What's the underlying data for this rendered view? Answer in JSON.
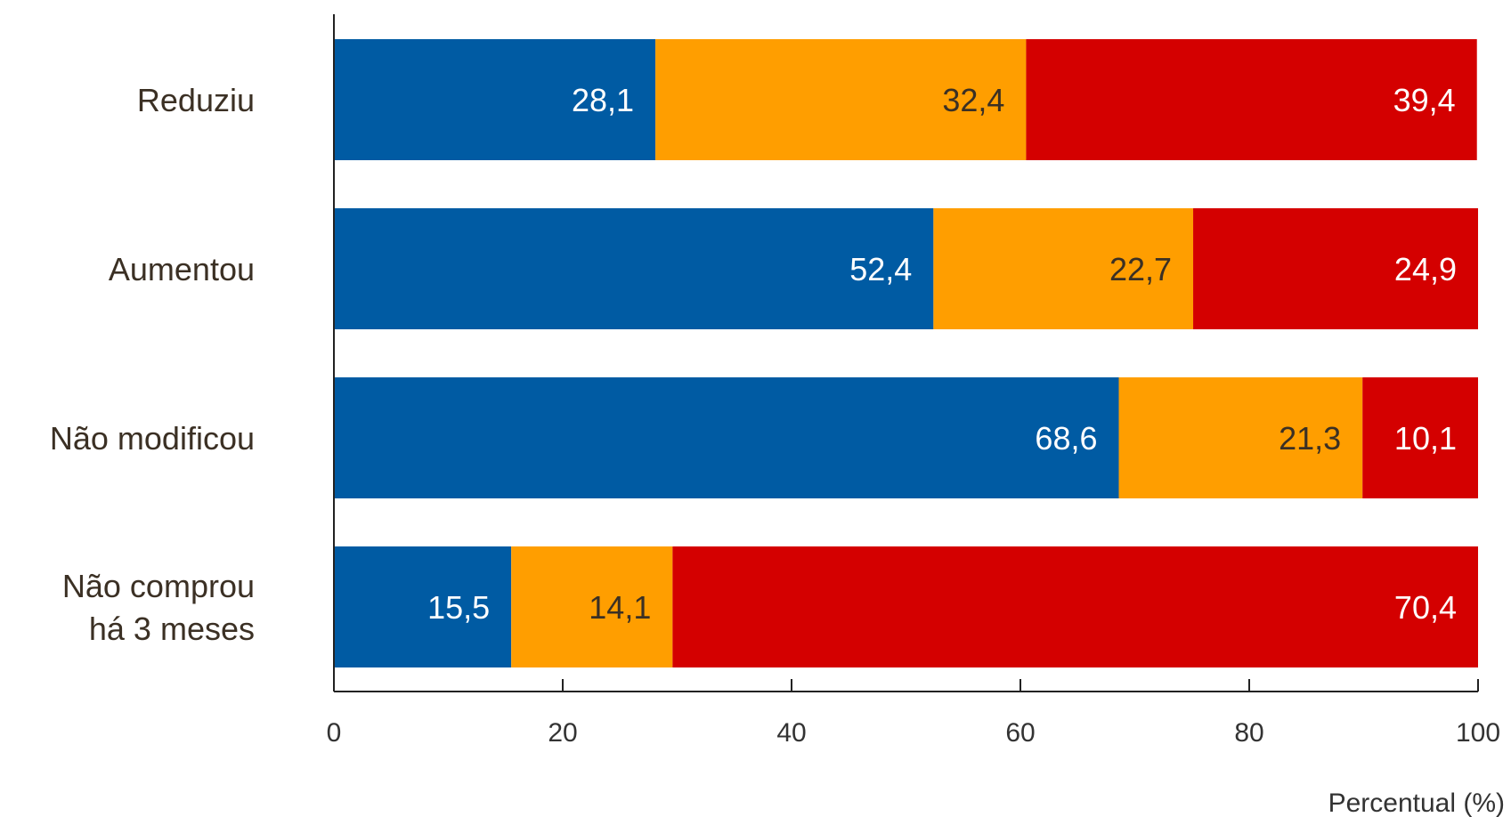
{
  "chart_data": {
    "type": "bar",
    "orientation": "horizontal",
    "stacked": true,
    "categories": [
      [
        "Reduziu"
      ],
      [
        "Aumentou"
      ],
      [
        "Não modificou"
      ],
      [
        "Não comprou",
        "há 3 meses"
      ]
    ],
    "series": [
      {
        "values": [
          28.1,
          52.4,
          68.6,
          15.5
        ],
        "labels": [
          "28,1",
          "52,4",
          "68,6",
          "15,5"
        ],
        "color": "#005ba3",
        "label_color": "#ffffff"
      },
      {
        "values": [
          32.4,
          22.7,
          21.3,
          14.1
        ],
        "labels": [
          "32,4",
          "22,7",
          "21,3",
          "14,1"
        ],
        "color": "#ff9e00",
        "label_color": "#3b3024"
      },
      {
        "values": [
          39.4,
          24.9,
          10.1,
          70.4
        ],
        "labels": [
          "39,4",
          "24,9",
          "10,1",
          "70,4"
        ],
        "color": "#d40000",
        "label_color": "#ffffff"
      }
    ],
    "xlim": [
      0,
      100
    ],
    "xticks": [
      0,
      20,
      40,
      60,
      80,
      100
    ],
    "xlabel": "Percentual (%)",
    "ylabel": "",
    "title": "",
    "grid": false,
    "legend": "none"
  }
}
